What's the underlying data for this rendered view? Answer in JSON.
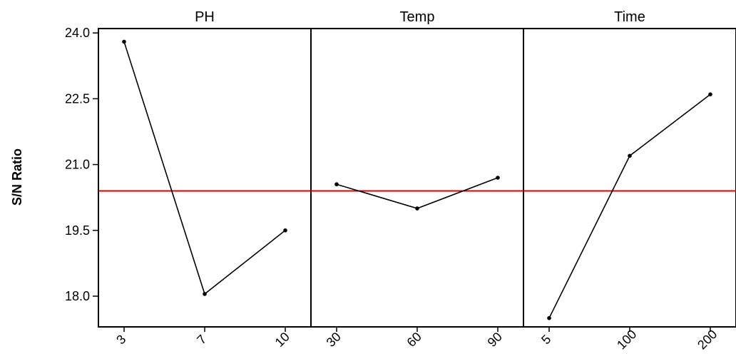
{
  "chart_data": {
    "type": "line",
    "ylabel": "S/N Ratio",
    "yticks": [
      "24.0",
      "22.5",
      "21.0",
      "19.5",
      "18.0"
    ],
    "ylim": [
      17.3,
      24.1
    ],
    "reference_line": {
      "value": 20.4,
      "color": "#e00000"
    },
    "panels": [
      {
        "title": "PH",
        "categories": [
          "3",
          "7",
          "10"
        ],
        "values": [
          23.8,
          18.05,
          19.5
        ]
      },
      {
        "title": "Temp",
        "categories": [
          "30",
          "60",
          "90"
        ],
        "values": [
          20.55,
          20.0,
          20.7
        ]
      },
      {
        "title": "Time",
        "categories": [
          "5",
          "100",
          "200"
        ],
        "values": [
          17.5,
          21.2,
          22.6
        ]
      }
    ],
    "grid": false,
    "line_color": "#000000"
  }
}
